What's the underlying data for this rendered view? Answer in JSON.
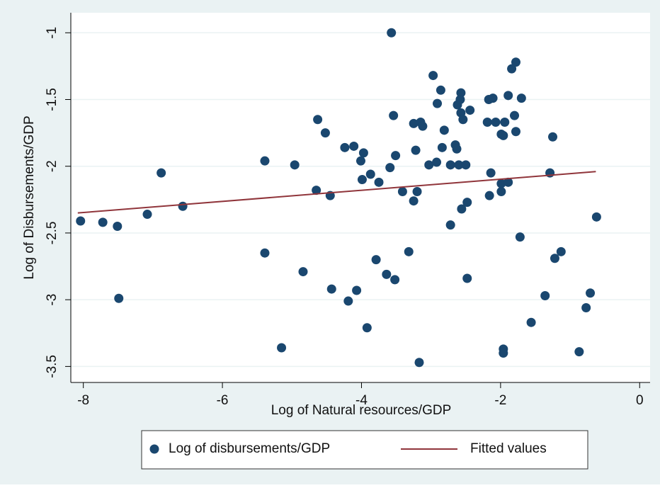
{
  "chart_data": {
    "type": "scatter",
    "xlabel": "Log of Natural resources/GDP",
    "ylabel": "Log of Disbursements/GDP",
    "xlim": [
      -8.18,
      0.15
    ],
    "ylim": [
      -3.62,
      -0.85
    ],
    "xticks": [
      -8,
      -6,
      -4,
      -2,
      0
    ],
    "yticks": [
      -3.5,
      -3,
      -2.5,
      -2,
      -1.5,
      -1
    ],
    "grid": true,
    "legend": "bottom",
    "series": [
      {
        "name": "Log of disbursements/GDP",
        "color": "#1a476f",
        "type": "scatter",
        "x": [
          -8.04,
          -7.72,
          -7.51,
          -7.49,
          -7.08,
          -6.88,
          -6.57,
          -5.39,
          -5.39,
          -5.15,
          -4.96,
          -4.84,
          -4.63,
          -4.65,
          -4.52,
          -4.45,
          -4.43,
          -4.24,
          -4.19,
          -4.11,
          -4.07,
          -3.97,
          -4.01,
          -3.99,
          -3.92,
          -3.87,
          -3.75,
          -3.79,
          -3.64,
          -3.59,
          -3.57,
          -3.54,
          -3.51,
          -3.52,
          -3.41,
          -3.32,
          -3.25,
          -3.25,
          -3.22,
          -3.2,
          -3.17,
          -3.15,
          -3.12,
          -3.03,
          -2.97,
          -2.92,
          -2.91,
          -2.86,
          -2.84,
          -2.81,
          -2.72,
          -2.72,
          -2.65,
          -2.63,
          -2.62,
          -2.6,
          -2.57,
          -2.58,
          -2.57,
          -2.54,
          -2.56,
          -2.5,
          -2.48,
          -2.48,
          -2.44,
          -2.19,
          -2.17,
          -2.16,
          -2.14,
          -2.11,
          -2.07,
          -1.99,
          -1.99,
          -1.99,
          -1.96,
          -1.94,
          -1.96,
          -1.96,
          -1.89,
          -1.89,
          -1.84,
          -1.8,
          -1.78,
          -1.78,
          -1.72,
          -1.7,
          -1.56,
          -1.36,
          -1.29,
          -1.25,
          -1.22,
          -1.13,
          -0.87,
          -0.77,
          -0.71,
          -0.62
        ],
        "values": [
          -2.41,
          -2.42,
          -2.45,
          -2.99,
          -2.36,
          -2.05,
          -2.3,
          -1.96,
          -2.65,
          -3.36,
          -1.99,
          -2.79,
          -1.65,
          -2.18,
          -1.75,
          -2.22,
          -2.92,
          -1.86,
          -3.01,
          -1.85,
          -2.93,
          -1.9,
          -1.96,
          -2.1,
          -3.21,
          -2.06,
          -2.12,
          -2.7,
          -2.81,
          -2.01,
          -1.0,
          -1.62,
          -1.92,
          -2.85,
          -2.19,
          -2.64,
          -1.68,
          -2.26,
          -1.88,
          -2.19,
          -3.47,
          -1.67,
          -1.7,
          -1.99,
          -1.32,
          -1.97,
          -1.53,
          -1.43,
          -1.86,
          -1.73,
          -2.44,
          -1.99,
          -1.84,
          -1.87,
          -1.54,
          -1.99,
          -1.45,
          -1.5,
          -1.6,
          -1.65,
          -2.32,
          -1.99,
          -2.27,
          -2.84,
          -1.58,
          -1.67,
          -1.5,
          -2.22,
          -2.05,
          -1.49,
          -1.67,
          -2.13,
          -2.19,
          -1.76,
          -1.77,
          -1.67,
          -3.37,
          -3.4,
          -2.12,
          -1.47,
          -1.27,
          -1.62,
          -1.22,
          -1.74,
          -2.53,
          -1.49,
          -3.17,
          -2.97,
          -2.05,
          -1.78,
          -2.69,
          -2.64,
          -3.39,
          -3.06,
          -2.95,
          -2.38
        ]
      },
      {
        "name": "Fitted values",
        "color": "#90353b",
        "type": "line",
        "x": [
          -8.08,
          -0.63
        ],
        "values": [
          -2.35,
          -2.04
        ]
      }
    ]
  }
}
